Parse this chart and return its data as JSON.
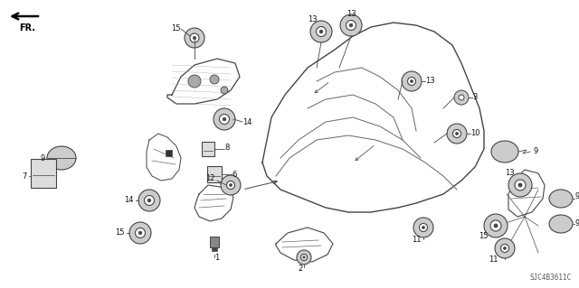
{
  "bg_color": "#ffffff",
  "watermark": "SJC4B3611C",
  "fig_width": 6.4,
  "fig_height": 3.19,
  "dpi": 100,
  "line_color": "#444444",
  "label_color": "#111111",
  "label_fs": 6.0
}
